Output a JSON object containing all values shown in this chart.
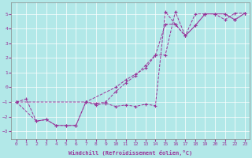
{
  "xlabel": "Windchill (Refroidissement éolien,°C)",
  "xlim": [
    -0.5,
    23.5
  ],
  "ylim": [
    -3.5,
    5.8
  ],
  "yticks": [
    -3,
    -2,
    -1,
    0,
    1,
    2,
    3,
    4,
    5
  ],
  "xticks": [
    0,
    1,
    2,
    3,
    4,
    5,
    6,
    7,
    8,
    9,
    10,
    11,
    12,
    13,
    14,
    15,
    16,
    17,
    18,
    19,
    20,
    21,
    22,
    23
  ],
  "line_color": "#993399",
  "bg_color": "#b2e8e8",
  "grid_color": "#ffffff",
  "line1_x": [
    0,
    1,
    2,
    3,
    4,
    5,
    6,
    7,
    8,
    9,
    10,
    11,
    12,
    13,
    14,
    15,
    16,
    17,
    18,
    19,
    20,
    21,
    22,
    23
  ],
  "line1_y": [
    -1.0,
    -0.8,
    -2.3,
    -2.2,
    -2.6,
    -2.6,
    -2.6,
    -1.0,
    -1.2,
    -1.1,
    -1.3,
    -1.2,
    -1.3,
    -1.15,
    -1.25,
    5.15,
    4.3,
    3.5,
    5.0,
    5.0,
    5.0,
    4.6,
    5.05,
    5.05
  ],
  "line2_x": [
    0,
    7,
    10,
    11,
    12,
    13,
    14,
    15,
    16,
    17,
    18,
    19,
    20,
    21,
    22,
    23
  ],
  "line2_y": [
    -1.0,
    -1.0,
    -0.0,
    0.5,
    0.9,
    1.3,
    2.2,
    4.3,
    4.3,
    3.5,
    4.2,
    5.0,
    5.0,
    5.0,
    4.6,
    5.05
  ],
  "line3_x": [
    0,
    2,
    3,
    4,
    5,
    6,
    7,
    8,
    9,
    10,
    11,
    12,
    13,
    14,
    15,
    16,
    17,
    18,
    19,
    20,
    21,
    22,
    23
  ],
  "line3_y": [
    -1.0,
    -2.3,
    -2.2,
    -2.6,
    -2.6,
    -2.6,
    -1.0,
    -1.1,
    -1.0,
    -0.3,
    0.3,
    0.8,
    1.5,
    2.2,
    2.2,
    5.15,
    3.5,
    4.2,
    5.0,
    5.0,
    5.0,
    4.6,
    5.05
  ]
}
